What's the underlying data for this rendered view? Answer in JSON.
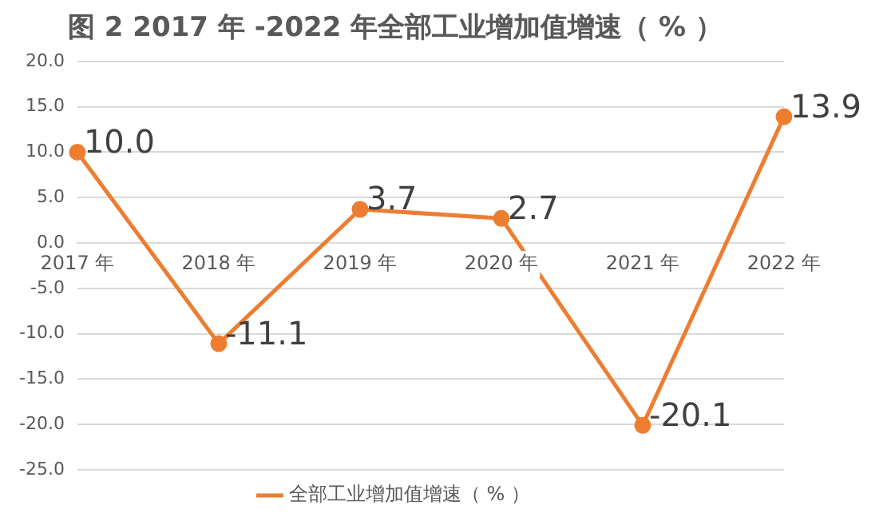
{
  "chart_data": {
    "type": "line",
    "title": "图 2 2017 年 -2022 年全部工业增加值增速（ % ）",
    "categories": [
      "2017 年",
      "2018 年",
      "2019 年",
      "2020 年",
      "2021 年",
      "2022 年"
    ],
    "series": [
      {
        "name": "全部工业增加值增速（ % ）",
        "color": "#ed7d31",
        "values": [
          10.0,
          -11.1,
          3.7,
          2.7,
          -20.1,
          13.9
        ],
        "value_labels": [
          "10.0",
          "-11.1",
          "3.7",
          "2.7",
          "-20.1",
          "13.9"
        ]
      }
    ],
    "ylim": [
      -25,
      20
    ],
    "yticks": [
      {
        "value": -25,
        "label": "-25.0"
      },
      {
        "value": -20,
        "label": "-20.0"
      },
      {
        "value": -15,
        "label": "-15.0"
      },
      {
        "value": -10,
        "label": "-10.0"
      },
      {
        "value": -5,
        "label": "-5.0"
      },
      {
        "value": 0,
        "label": "0.0"
      },
      {
        "value": 5,
        "label": "5.0"
      },
      {
        "value": 10,
        "label": "10.0"
      },
      {
        "value": 15,
        "label": "15.0"
      },
      {
        "value": 20,
        "label": "20.0"
      }
    ],
    "grid": "y",
    "legend": "bottom",
    "marker": "circle",
    "line_style": "solid"
  }
}
